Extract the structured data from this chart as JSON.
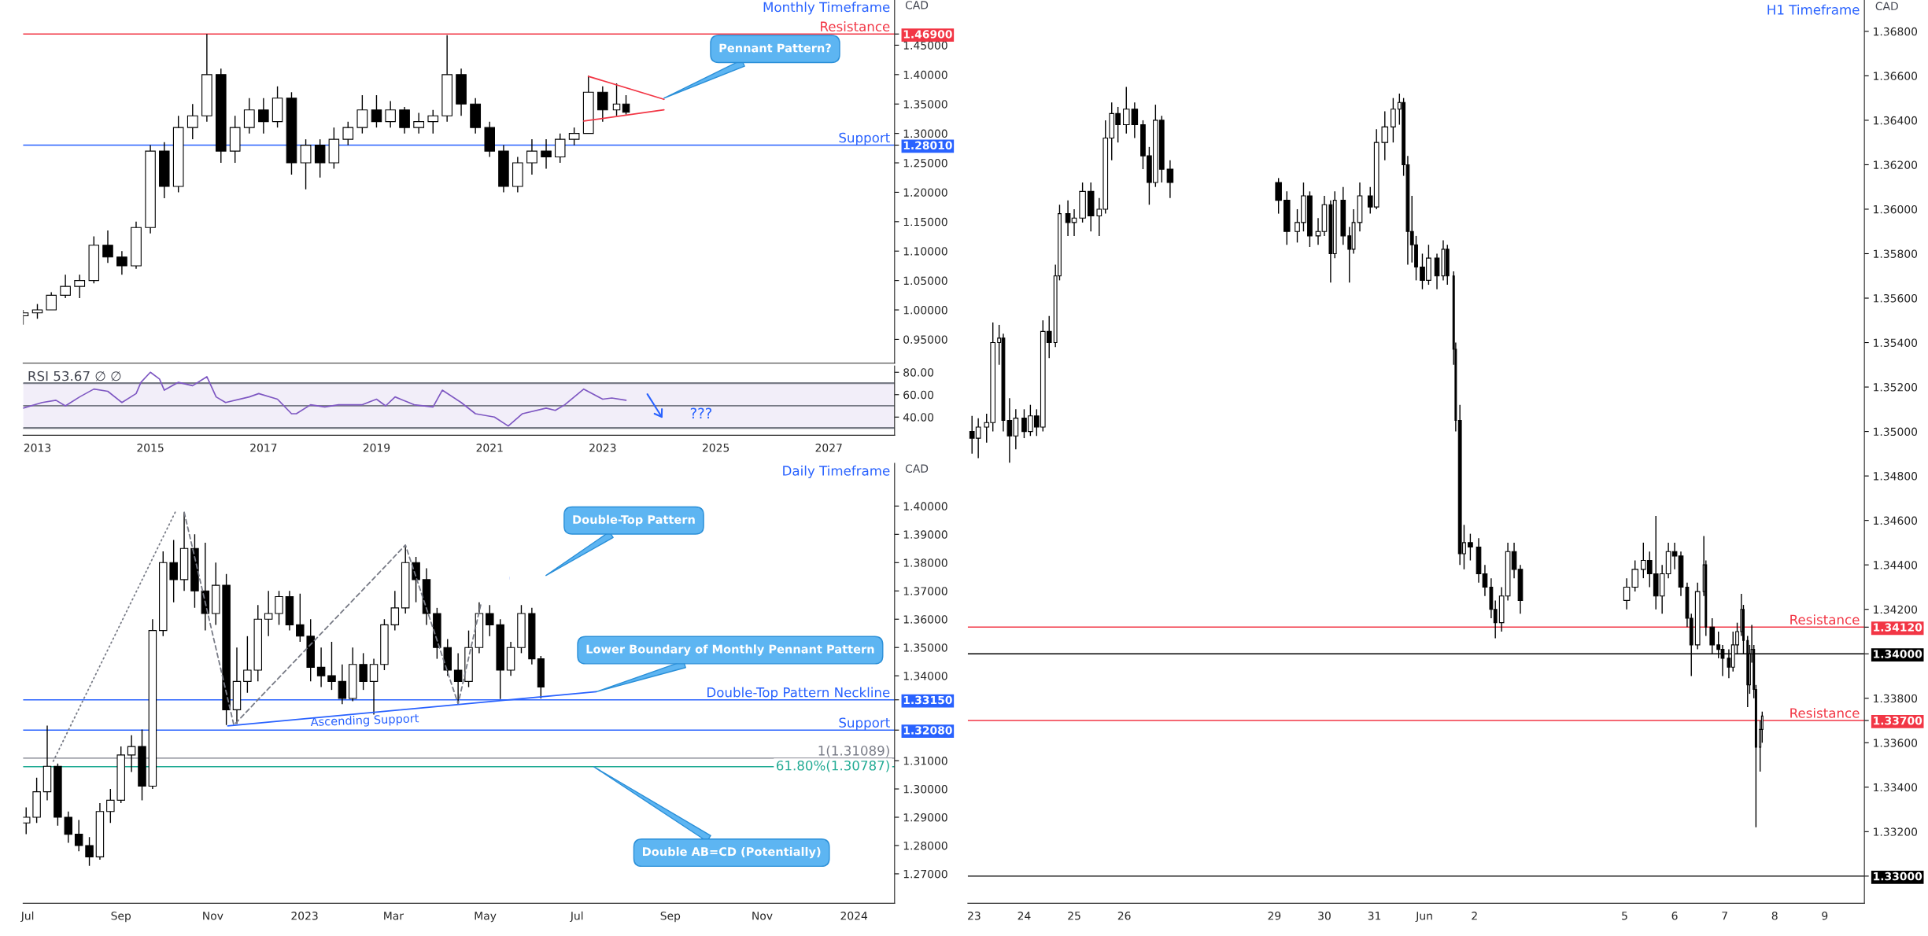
{
  "chart_data": [
    {
      "type": "candlestick",
      "title": "Monthly Timeframe",
      "ylabel": "CAD",
      "tick_labels": "y",
      "x": [
        "2012-10",
        "2013-01",
        "2013-04",
        "2013-07",
        "2013-10",
        "2014-01",
        "2014-04",
        "2014-07",
        "2014-10",
        "2015-01",
        "2015-04",
        "2015-07",
        "2015-10",
        "2016-01",
        "2016-04",
        "2016-07",
        "2016-10",
        "2017-01",
        "2017-04",
        "2017-07",
        "2017-10",
        "2018-01",
        "2018-04",
        "2018-07",
        "2018-10",
        "2019-01",
        "2019-04",
        "2019-07",
        "2019-10",
        "2020-01",
        "2020-04",
        "2020-07",
        "2020-10",
        "2021-01",
        "2021-04",
        "2021-07",
        "2021-10",
        "2022-01",
        "2022-04",
        "2022-07",
        "2022-10",
        "2023-01",
        "2023-04",
        "2023-06"
      ],
      "ohlc": [
        [
          0.99,
          1.0,
          0.975,
          0.995
        ],
        [
          0.995,
          1.01,
          0.985,
          1.0
        ],
        [
          1.0,
          1.03,
          1.0,
          1.025
        ],
        [
          1.025,
          1.06,
          1.02,
          1.04
        ],
        [
          1.04,
          1.06,
          1.02,
          1.05
        ],
        [
          1.05,
          1.125,
          1.045,
          1.11
        ],
        [
          1.11,
          1.135,
          1.08,
          1.09
        ],
        [
          1.09,
          1.1,
          1.06,
          1.075
        ],
        [
          1.075,
          1.15,
          1.07,
          1.14
        ],
        [
          1.14,
          1.28,
          1.13,
          1.27
        ],
        [
          1.27,
          1.285,
          1.19,
          1.21
        ],
        [
          1.21,
          1.33,
          1.2,
          1.31
        ],
        [
          1.31,
          1.35,
          1.29,
          1.33
        ],
        [
          1.33,
          1.469,
          1.32,
          1.4
        ],
        [
          1.4,
          1.41,
          1.25,
          1.27
        ],
        [
          1.27,
          1.33,
          1.25,
          1.31
        ],
        [
          1.31,
          1.36,
          1.3,
          1.34
        ],
        [
          1.34,
          1.36,
          1.3,
          1.32
        ],
        [
          1.32,
          1.38,
          1.31,
          1.36
        ],
        [
          1.36,
          1.37,
          1.23,
          1.25
        ],
        [
          1.25,
          1.29,
          1.205,
          1.28
        ],
        [
          1.28,
          1.29,
          1.225,
          1.25
        ],
        [
          1.25,
          1.31,
          1.24,
          1.29
        ],
        [
          1.29,
          1.32,
          1.28,
          1.31
        ],
        [
          1.31,
          1.365,
          1.3,
          1.34
        ],
        [
          1.34,
          1.365,
          1.31,
          1.32
        ],
        [
          1.32,
          1.355,
          1.31,
          1.34
        ],
        [
          1.34,
          1.345,
          1.3,
          1.31
        ],
        [
          1.31,
          1.335,
          1.3,
          1.32
        ],
        [
          1.32,
          1.34,
          1.3,
          1.33
        ],
        [
          1.33,
          1.467,
          1.32,
          1.4
        ],
        [
          1.4,
          1.41,
          1.33,
          1.35
        ],
        [
          1.35,
          1.36,
          1.3,
          1.31
        ],
        [
          1.31,
          1.32,
          1.26,
          1.27
        ],
        [
          1.27,
          1.28,
          1.2,
          1.21
        ],
        [
          1.21,
          1.26,
          1.2,
          1.25
        ],
        [
          1.25,
          1.29,
          1.23,
          1.27
        ],
        [
          1.27,
          1.29,
          1.24,
          1.26
        ],
        [
          1.26,
          1.3,
          1.25,
          1.29
        ],
        [
          1.29,
          1.31,
          1.28,
          1.3
        ],
        [
          1.3,
          1.398,
          1.3,
          1.37
        ],
        [
          1.37,
          1.38,
          1.32,
          1.34
        ],
        [
          1.34,
          1.385,
          1.33,
          1.35
        ],
        [
          1.35,
          1.365,
          1.332,
          1.336
        ]
      ],
      "series": [
        {
          "type": "line",
          "color": "#f23645",
          "x": [
            "2022-10",
            "2024-02"
          ],
          "values": [
            1.397,
            1.358
          ]
        },
        {
          "type": "line",
          "color": "#f23645",
          "x": [
            "2022-09",
            "2024-02"
          ],
          "values": [
            1.321,
            1.34
          ]
        }
      ],
      "ref_lines": [
        {
          "axis": "y",
          "value": 1.469,
          "label": "Resistance",
          "color": "#f23645"
        },
        {
          "axis": "y",
          "value": 1.2801,
          "label": "Support",
          "color": "#2962ff"
        }
      ],
      "annotations": [
        {
          "text": "Pennant Pattern?",
          "x": "2024-02",
          "y": 1.36
        }
      ],
      "xlim": [
        "2012-10",
        "2028-03"
      ],
      "ylim": [
        0.9095,
        1.5268
      ],
      "yticks": [
        {
          "value": 0.95,
          "label": "0.95000"
        },
        {
          "value": 1.0,
          "label": "1.00000"
        },
        {
          "value": 1.05,
          "label": "1.05000"
        },
        {
          "value": 1.1,
          "label": "1.10000"
        },
        {
          "value": 1.15,
          "label": "1.15000"
        },
        {
          "value": 1.2,
          "label": "1.20000"
        },
        {
          "value": 1.25,
          "label": "1.25000"
        },
        {
          "value": 1.2801,
          "label": "1.28010"
        },
        {
          "value": 1.3,
          "label": "1.30000"
        },
        {
          "value": 1.35,
          "label": "1.35000"
        },
        {
          "value": 1.4,
          "label": "1.40000"
        },
        {
          "value": 1.45,
          "label": "1.45000"
        },
        {
          "value": 1.469,
          "label": "1.46900"
        }
      ]
    },
    {
      "type": "line",
      "title": "RSI 53.67 ∅ ∅",
      "x": [
        "2012-10",
        "2013-02",
        "2013-05",
        "2013-07",
        "2013-10",
        "2014-01",
        "2014-04",
        "2014-07",
        "2014-10",
        "2014-11",
        "2015-01",
        "2015-03",
        "2015-04",
        "2015-07",
        "2015-10",
        "2016-01",
        "2016-03",
        "2016-05",
        "2016-10",
        "2016-12",
        "2017-04",
        "2017-07",
        "2017-08",
        "2017-11",
        "2018-02",
        "2018-05",
        "2018-10",
        "2019-01",
        "2019-03",
        "2019-05",
        "2019-09",
        "2020-01",
        "2020-03",
        "2020-07",
        "2020-10",
        "2021-02",
        "2021-05",
        "2021-08",
        "2022-01",
        "2022-03",
        "2022-05",
        "2022-09",
        "2023-01",
        "2023-03",
        "2023-06"
      ],
      "series": [
        {
          "color": "#7e57c2",
          "values": [
            48,
            53,
            55,
            50,
            58,
            65,
            63,
            53,
            61,
            71,
            80,
            74,
            64,
            71,
            68,
            76,
            58,
            53,
            58,
            61,
            56,
            43,
            43,
            51,
            49,
            51,
            51,
            56,
            50,
            58,
            51,
            49,
            64,
            53,
            43,
            40,
            32,
            43,
            48,
            46,
            51,
            65,
            56,
            57,
            55
          ]
        }
      ],
      "bands": [
        {
          "axis": "y",
          "from": 30,
          "to": 70,
          "color": "#7e57c2"
        }
      ],
      "ref_lines": [
        {
          "axis": "y",
          "value": 70,
          "color": "#787b86",
          "line_style": "dashed"
        },
        {
          "axis": "y",
          "value": 50,
          "color": "#787b86",
          "line_style": "dashed"
        },
        {
          "axis": "y",
          "value": 30,
          "color": "#787b86",
          "line_style": "dashed"
        }
      ],
      "annotations": [
        "???"
      ],
      "xlim": [
        "2012-10",
        "2028-03"
      ],
      "xticks": [
        {
          "value": "2013-01",
          "label": "2013"
        },
        {
          "value": "2015-01",
          "label": "2015"
        },
        {
          "value": "2017-01",
          "label": "2017"
        },
        {
          "value": "2019-01",
          "label": "2019"
        },
        {
          "value": "2021-01",
          "label": "2021"
        },
        {
          "value": "2023-01",
          "label": "2023"
        },
        {
          "value": "2025-01",
          "label": "2025"
        },
        {
          "value": "2027-01",
          "label": "2027"
        }
      ],
      "ylim": [
        23.8,
        85.6
      ],
      "yticks": [
        {
          "value": 40,
          "label": "40.00"
        },
        {
          "value": 60,
          "label": "60.00"
        },
        {
          "value": 80,
          "label": "80.00"
        }
      ]
    },
    {
      "type": "candlestick",
      "title": "Daily Timeframe",
      "ylabel": "CAD",
      "x": [
        "2022-06-30",
        "2022-07-07",
        "2022-07-14",
        "2022-07-21",
        "2022-07-28",
        "2022-08-04",
        "2022-08-11",
        "2022-08-18",
        "2022-08-25",
        "2022-09-01",
        "2022-09-08",
        "2022-09-15",
        "2022-09-22",
        "2022-09-29",
        "2022-10-06",
        "2022-10-13",
        "2022-10-20",
        "2022-10-27",
        "2022-11-03",
        "2022-11-10",
        "2022-11-17",
        "2022-11-24",
        "2022-12-01",
        "2022-12-08",
        "2022-12-15",
        "2022-12-22",
        "2022-12-29",
        "2023-01-05",
        "2023-01-12",
        "2023-01-19",
        "2023-01-26",
        "2023-02-02",
        "2023-02-09",
        "2023-02-16",
        "2023-02-23",
        "2023-03-02",
        "2023-03-09",
        "2023-03-16",
        "2023-03-23",
        "2023-03-30",
        "2023-04-06",
        "2023-04-13",
        "2023-04-20",
        "2023-04-27",
        "2023-05-04",
        "2023-05-11",
        "2023-05-18",
        "2023-05-25",
        "2023-06-01",
        "2023-06-07"
      ],
      "ohlc": [
        [
          1.288,
          1.2935,
          1.284,
          1.29
        ],
        [
          1.29,
          1.304,
          1.288,
          1.299
        ],
        [
          1.299,
          1.3224,
          1.296,
          1.308
        ],
        [
          1.308,
          1.309,
          1.287,
          1.29
        ],
        [
          1.29,
          1.292,
          1.281,
          1.284
        ],
        [
          1.284,
          1.289,
          1.278,
          1.28
        ],
        [
          1.28,
          1.283,
          1.2728,
          1.276
        ],
        [
          1.276,
          1.295,
          1.275,
          1.292
        ],
        [
          1.292,
          1.3,
          1.288,
          1.296
        ],
        [
          1.296,
          1.315,
          1.295,
          1.312
        ],
        [
          1.312,
          1.319,
          1.306,
          1.315
        ],
        [
          1.315,
          1.321,
          1.296,
          1.301
        ],
        [
          1.301,
          1.36,
          1.3,
          1.356
        ],
        [
          1.356,
          1.384,
          1.354,
          1.38
        ],
        [
          1.38,
          1.388,
          1.366,
          1.374
        ],
        [
          1.374,
          1.3978,
          1.37,
          1.385
        ],
        [
          1.385,
          1.39,
          1.364,
          1.37
        ],
        [
          1.37,
          1.387,
          1.356,
          1.362
        ],
        [
          1.362,
          1.38,
          1.358,
          1.372
        ],
        [
          1.372,
          1.376,
          1.3226,
          1.328
        ],
        [
          1.328,
          1.35,
          1.323,
          1.338
        ],
        [
          1.338,
          1.354,
          1.334,
          1.342
        ],
        [
          1.342,
          1.365,
          1.338,
          1.36
        ],
        [
          1.36,
          1.37,
          1.354,
          1.362
        ],
        [
          1.362,
          1.37,
          1.358,
          1.368
        ],
        [
          1.368,
          1.37,
          1.356,
          1.358
        ],
        [
          1.358,
          1.369,
          1.352,
          1.354
        ],
        [
          1.354,
          1.36,
          1.338,
          1.343
        ],
        [
          1.343,
          1.35,
          1.336,
          1.34
        ],
        [
          1.34,
          1.352,
          1.335,
          1.338
        ],
        [
          1.338,
          1.344,
          1.33,
          1.332
        ],
        [
          1.332,
          1.35,
          1.331,
          1.344
        ],
        [
          1.344,
          1.348,
          1.335,
          1.338
        ],
        [
          1.338,
          1.346,
          1.3263,
          1.344
        ],
        [
          1.344,
          1.36,
          1.342,
          1.358
        ],
        [
          1.358,
          1.37,
          1.356,
          1.364
        ],
        [
          1.364,
          1.3862,
          1.362,
          1.38
        ],
        [
          1.38,
          1.382,
          1.366,
          1.374
        ],
        [
          1.374,
          1.378,
          1.358,
          1.362
        ],
        [
          1.362,
          1.364,
          1.346,
          1.35
        ],
        [
          1.35,
          1.353,
          1.34,
          1.342
        ],
        [
          1.342,
          1.348,
          1.3301,
          1.338
        ],
        [
          1.338,
          1.356,
          1.336,
          1.35
        ],
        [
          1.35,
          1.366,
          1.348,
          1.362
        ],
        [
          1.362,
          1.365,
          1.354,
          1.358
        ],
        [
          1.358,
          1.36,
          1.3318,
          1.342
        ],
        [
          1.342,
          1.352,
          1.34,
          1.35
        ],
        [
          1.35,
          1.365,
          1.348,
          1.362
        ],
        [
          1.362,
          1.364,
          1.344,
          1.346
        ],
        [
          1.346,
          1.347,
          1.332,
          1.336
        ]
      ],
      "series": [
        {
          "type": "line",
          "color": "#787b86",
          "line_style": "dotted",
          "x": [
            "2022-07-18",
            "2022-10-07"
          ],
          "values": [
            1.3098,
            1.3978
          ]
        },
        {
          "type": "line",
          "color": "#787b86",
          "line_style": "dashed",
          "x": [
            "2022-10-13",
            "2022-11-15",
            "2023-03-09",
            "2023-04-13",
            "2023-04-28"
          ],
          "values": [
            1.3978,
            1.3226,
            1.3862,
            1.3301,
            1.365
          ]
        },
        {
          "type": "line",
          "color": "#2962ff",
          "x": [
            "2022-11-11",
            "2023-07-14"
          ],
          "values": [
            1.3223,
            1.3344
          ]
        }
      ],
      "ref_lines": [
        {
          "axis": "y",
          "value": 1.3315,
          "label": "Double-Top Pattern Neckline",
          "color": "#2962ff"
        },
        {
          "axis": "y",
          "value": 1.3208,
          "label": "Support",
          "color": "#2962ff"
        },
        {
          "axis": "y",
          "value": 1.31089,
          "label": "1(1.31089)",
          "color": "#787b86"
        },
        {
          "axis": "y",
          "value": 1.30787,
          "label": "61.80%(1.30787)",
          "color": "#22ab94"
        }
      ],
      "annotations": [
        "Double-Top Pattern",
        {
          "text": "Lower Boundary of Monthly Pennant Pattern",
          "x": "2023-07-14",
          "y": 1.3344
        },
        {
          "text": "Ascending Support",
          "x": "2023-02-10",
          "y": 1.3275
        },
        "Double AB=CD (Potentially)"
      ],
      "xlim": [
        "2022-06-28",
        "2024-01-28"
      ],
      "xticks": [
        {
          "value": "2022-07-01",
          "label": "Jul"
        },
        {
          "value": "2022-09-01",
          "label": "Sep"
        },
        {
          "value": "2022-11-01",
          "label": "Nov"
        },
        {
          "value": "2023-01-01",
          "label": "2023"
        },
        {
          "value": "2023-03-01",
          "label": "Mar"
        },
        {
          "value": "2023-05-01",
          "label": "May"
        },
        {
          "value": "2023-07-01",
          "label": "Jul"
        },
        {
          "value": "2023-09-01",
          "label": "Sep"
        },
        {
          "value": "2023-11-01",
          "label": "Nov"
        },
        {
          "value": "2024-01-01",
          "label": "2024"
        }
      ],
      "ylim": [
        1.2596,
        1.4151
      ],
      "yticks": [
        {
          "value": 1.27,
          "label": "1.27000"
        },
        {
          "value": 1.28,
          "label": "1.28000"
        },
        {
          "value": 1.29,
          "label": "1.29000"
        },
        {
          "value": 1.3,
          "label": "1.30000"
        },
        {
          "value": 1.31,
          "label": "1.31000"
        },
        {
          "value": 1.3208,
          "label": "1.32080"
        },
        {
          "value": 1.3315,
          "label": "1.33150"
        },
        {
          "value": 1.34,
          "label": "1.34000"
        },
        {
          "value": 1.35,
          "label": "1.35000"
        },
        {
          "value": 1.36,
          "label": "1.36000"
        },
        {
          "value": 1.37,
          "label": "1.37000"
        },
        {
          "value": 1.38,
          "label": "1.38000"
        },
        {
          "value": 1.39,
          "label": "1.39000"
        },
        {
          "value": 1.4,
          "label": "1.40000"
        }
      ]
    },
    {
      "type": "candlestick",
      "title": "H1 Timeframe",
      "ylabel": "CAD",
      "x": [
        "2023-05-22T23:00",
        "2023-05-23T02:00",
        "2023-05-23T06:00",
        "2023-05-23T09:00",
        "2023-05-23T12:00",
        "2023-05-23T14:00",
        "2023-05-23T17:00",
        "2023-05-23T20:00",
        "2023-05-24T00:00",
        "2023-05-24T03:00",
        "2023-05-24T06:00",
        "2023-05-24T09:00",
        "2023-05-24T12:00",
        "2023-05-24T15:00",
        "2023-05-24T17:00",
        "2023-05-24T21:00",
        "2023-05-25T00:00",
        "2023-05-25T04:00",
        "2023-05-25T08:00",
        "2023-05-25T12:00",
        "2023-05-25T15:00",
        "2023-05-25T18:00",
        "2023-05-25T21:00",
        "2023-05-26T01:00",
        "2023-05-26T05:00",
        "2023-05-26T09:00",
        "2023-05-26T12:00",
        "2023-05-26T15:00",
        "2023-05-26T18:00",
        "2023-05-26T22:00",
        "2023-05-29T02:00",
        "2023-05-29T06:00",
        "2023-05-29T11:00",
        "2023-05-29T14:00",
        "2023-05-29T17:00",
        "2023-05-29T21:00",
        "2023-05-30T00:00",
        "2023-05-30T03:00",
        "2023-05-30T05:00",
        "2023-05-30T09:00",
        "2023-05-30T12:00",
        "2023-05-30T14:00",
        "2023-05-30T17:00",
        "2023-05-30T22:00",
        "2023-05-31T01:00",
        "2023-05-31T05:00",
        "2023-05-31T09:00",
        "2023-05-31T12:00",
        "2023-05-31T14:00",
        "2023-05-31T16:00",
        "2023-05-31T18:00",
        "2023-05-31T20:00",
        "2023-05-31T23:00",
        "2023-06-01T02:00",
        "2023-06-01T06:00",
        "2023-06-01T09:00",
        "2023-06-01T11:00",
        "2023-06-01T14:00",
        "2023-06-01T15:00",
        "2023-06-01T17:00",
        "2023-06-01T19:00",
        "2023-06-01T22:00",
        "2023-06-02T02:00",
        "2023-06-02T05:00",
        "2023-06-02T08:00",
        "2023-06-02T10:00",
        "2023-06-02T13:00",
        "2023-06-02T16:00",
        "2023-06-02T19:00",
        "2023-06-02T22:00",
        "2023-06-05T01:00",
        "2023-06-05T05:00",
        "2023-06-05T09:00",
        "2023-06-05T12:00",
        "2023-06-05T15:00",
        "2023-06-05T18:00",
        "2023-06-05T21:00",
        "2023-06-06T00:00",
        "2023-06-06T03:00",
        "2023-06-06T06:00",
        "2023-06-06T08:00",
        "2023-06-06T11:00",
        "2023-06-06T14:00",
        "2023-06-06T15:00",
        "2023-06-06T18:00",
        "2023-06-06T21:00",
        "2023-06-06T23:00",
        "2023-06-07T02:00",
        "2023-06-07T04:00",
        "2023-06-07T06:00",
        "2023-06-07T08:00",
        "2023-06-07T09:00",
        "2023-06-07T11:00",
        "2023-06-07T12:00",
        "2023-06-07T13:00",
        "2023-06-07T14:00",
        "2023-06-07T15:00",
        "2023-06-07T17:00",
        "2023-06-07T18:00"
      ],
      "ohlc": [
        [
          1.35,
          1.3507,
          1.349,
          1.3497
        ],
        [
          1.3497,
          1.3506,
          1.3488,
          1.3502
        ],
        [
          1.3502,
          1.3508,
          1.3495,
          1.3504
        ],
        [
          1.3504,
          1.3549,
          1.35,
          1.354
        ],
        [
          1.354,
          1.3548,
          1.353,
          1.3542
        ],
        [
          1.3542,
          1.3544,
          1.35,
          1.3505
        ],
        [
          1.3505,
          1.3515,
          1.3486,
          1.3498
        ],
        [
          1.3498,
          1.351,
          1.3492,
          1.3506
        ],
        [
          1.3506,
          1.351,
          1.3497,
          1.35
        ],
        [
          1.35,
          1.3512,
          1.3498,
          1.3507
        ],
        [
          1.3507,
          1.351,
          1.3498,
          1.3502
        ],
        [
          1.3502,
          1.355,
          1.35,
          1.3545
        ],
        [
          1.3545,
          1.3552,
          1.3533,
          1.354
        ],
        [
          1.354,
          1.3575,
          1.3538,
          1.357
        ],
        [
          1.357,
          1.3602,
          1.3568,
          1.3598
        ],
        [
          1.3598,
          1.3604,
          1.3588,
          1.3594
        ],
        [
          1.3594,
          1.36,
          1.3588,
          1.3596
        ],
        [
          1.3596,
          1.3612,
          1.3594,
          1.3608
        ],
        [
          1.3608,
          1.3612,
          1.359,
          1.3597
        ],
        [
          1.3597,
          1.3605,
          1.3588,
          1.36
        ],
        [
          1.36,
          1.364,
          1.3598,
          1.3632
        ],
        [
          1.3632,
          1.3648,
          1.3622,
          1.3643
        ],
        [
          1.3643,
          1.3646,
          1.363,
          1.3638
        ],
        [
          1.3638,
          1.3655,
          1.3634,
          1.3645
        ],
        [
          1.3645,
          1.3648,
          1.3632,
          1.3638
        ],
        [
          1.3638,
          1.364,
          1.3618,
          1.3624
        ],
        [
          1.3624,
          1.3628,
          1.3602,
          1.3612
        ],
        [
          1.3612,
          1.3647,
          1.361,
          1.364
        ],
        [
          1.364,
          1.3642,
          1.3612,
          1.3618
        ],
        [
          1.3618,
          1.3622,
          1.3605,
          1.3612
        ],
        [
          1.3612,
          1.3614,
          1.3598,
          1.3604
        ],
        [
          1.3604,
          1.3608,
          1.3584,
          1.359
        ],
        [
          1.359,
          1.36,
          1.3585,
          1.3594
        ],
        [
          1.3594,
          1.3612,
          1.359,
          1.3606
        ],
        [
          1.3606,
          1.3608,
          1.3583,
          1.3588
        ],
        [
          1.3588,
          1.3596,
          1.3584,
          1.359
        ],
        [
          1.359,
          1.3606,
          1.3588,
          1.3602
        ],
        [
          1.3602,
          1.3604,
          1.3567,
          1.358
        ],
        [
          1.358,
          1.3608,
          1.3578,
          1.3604
        ],
        [
          1.3604,
          1.361,
          1.3584,
          1.3588
        ],
        [
          1.3588,
          1.3592,
          1.3567,
          1.3582
        ],
        [
          1.3582,
          1.36,
          1.358,
          1.3594
        ],
        [
          1.3594,
          1.3612,
          1.359,
          1.3606
        ],
        [
          1.3606,
          1.361,
          1.3598,
          1.3601
        ],
        [
          1.3601,
          1.3636,
          1.36,
          1.363
        ],
        [
          1.363,
          1.3644,
          1.3622,
          1.3637
        ],
        [
          1.3637,
          1.365,
          1.363,
          1.3645
        ],
        [
          1.3645,
          1.3652,
          1.3638,
          1.3648
        ],
        [
          1.3648,
          1.365,
          1.3615,
          1.362
        ],
        [
          1.362,
          1.3624,
          1.3575,
          1.359
        ],
        [
          1.359,
          1.3606,
          1.3576,
          1.3584
        ],
        [
          1.3584,
          1.3588,
          1.3568,
          1.3574
        ],
        [
          1.3574,
          1.358,
          1.3564,
          1.3568
        ],
        [
          1.3568,
          1.3584,
          1.3566,
          1.3578
        ],
        [
          1.3578,
          1.358,
          1.3564,
          1.357
        ],
        [
          1.357,
          1.3586,
          1.3568,
          1.3582
        ],
        [
          1.3582,
          1.3584,
          1.3566,
          1.357
        ],
        [
          1.357,
          1.3572,
          1.353,
          1.3537
        ],
        [
          1.3537,
          1.354,
          1.35,
          1.3505
        ],
        [
          1.3505,
          1.3512,
          1.344,
          1.3445
        ],
        [
          1.3445,
          1.3458,
          1.3438,
          1.345
        ],
        [
          1.345,
          1.3454,
          1.3442,
          1.3448
        ],
        [
          1.3448,
          1.3452,
          1.3432,
          1.3436
        ],
        [
          1.3436,
          1.344,
          1.3426,
          1.343
        ],
        [
          1.343,
          1.3434,
          1.3416,
          1.342
        ],
        [
          1.342,
          1.3424,
          1.3407,
          1.3414
        ],
        [
          1.3414,
          1.343,
          1.341,
          1.3426
        ],
        [
          1.3426,
          1.345,
          1.3424,
          1.3446
        ],
        [
          1.3446,
          1.345,
          1.3434,
          1.3438
        ],
        [
          1.3438,
          1.344,
          1.3418,
          1.3424
        ],
        [
          1.3424,
          1.3434,
          1.342,
          1.343
        ],
        [
          1.343,
          1.3442,
          1.3428,
          1.3438
        ],
        [
          1.3438,
          1.345,
          1.3434,
          1.3442
        ],
        [
          1.3442,
          1.3446,
          1.343,
          1.3436
        ],
        [
          1.3436,
          1.3462,
          1.342,
          1.3426
        ],
        [
          1.3426,
          1.344,
          1.3418,
          1.3436
        ],
        [
          1.3436,
          1.345,
          1.3434,
          1.3446
        ],
        [
          1.3446,
          1.345,
          1.3438,
          1.3444
        ],
        [
          1.3444,
          1.3446,
          1.3426,
          1.343
        ],
        [
          1.343,
          1.3432,
          1.3412,
          1.3416
        ],
        [
          1.3416,
          1.3418,
          1.339,
          1.3404
        ],
        [
          1.3404,
          1.3432,
          1.3402,
          1.3428
        ],
        [
          1.3428,
          1.3453,
          1.3426,
          1.344
        ],
        [
          1.344,
          1.3442,
          1.3408,
          1.3412
        ],
        [
          1.3412,
          1.3416,
          1.34,
          1.3404
        ],
        [
          1.3404,
          1.341,
          1.3398,
          1.3402
        ],
        [
          1.3402,
          1.3404,
          1.339,
          1.3398
        ],
        [
          1.3398,
          1.3402,
          1.3389,
          1.3394
        ],
        [
          1.3394,
          1.341,
          1.3392,
          1.3404
        ],
        [
          1.3404,
          1.3414,
          1.34,
          1.341
        ],
        [
          1.341,
          1.3427,
          1.3408,
          1.342
        ],
        [
          1.342,
          1.3422,
          1.34,
          1.3406
        ],
        [
          1.3406,
          1.3408,
          1.3376,
          1.3386
        ],
        [
          1.3386,
          1.3404,
          1.3382,
          1.34
        ],
        [
          1.34,
          1.3413,
          1.3396,
          1.3402
        ],
        [
          1.3402,
          1.3404,
          1.338,
          1.3384
        ],
        [
          1.3384,
          1.3386,
          1.3322,
          1.3358
        ],
        [
          1.3358,
          1.337,
          1.3347,
          1.3366
        ],
        [
          1.3366,
          1.3374,
          1.336,
          1.3372
        ]
      ],
      "ref_lines": [
        {
          "axis": "y",
          "value": 1.3412,
          "label": "Resistance",
          "color": "#f23645"
        },
        {
          "axis": "y",
          "value": 1.34,
          "color": "#000000"
        },
        {
          "axis": "y",
          "value": 1.337,
          "label": "Resistance",
          "color": "#f23645"
        },
        {
          "axis": "y",
          "value": 1.33,
          "color": "#000000"
        }
      ],
      "xlim": [
        "2023-05-22T21:00",
        "2023-06-09T19:00"
      ],
      "xticks": [
        {
          "value": "2023-05-23",
          "label": "23"
        },
        {
          "value": "2023-05-24",
          "label": "24"
        },
        {
          "value": "2023-05-25",
          "label": "25"
        },
        {
          "value": "2023-05-26",
          "label": "26"
        },
        {
          "value": "2023-05-29",
          "label": "29"
        },
        {
          "value": "2023-05-30",
          "label": "30"
        },
        {
          "value": "2023-05-31",
          "label": "31"
        },
        {
          "value": "2023-06-01",
          "label": "Jun"
        },
        {
          "value": "2023-06-02",
          "label": "2"
        },
        {
          "value": "2023-06-05",
          "label": "5"
        },
        {
          "value": "2023-06-06",
          "label": "6"
        },
        {
          "value": "2023-06-07",
          "label": "7"
        },
        {
          "value": "2023-06-08",
          "label": "8"
        },
        {
          "value": "2023-06-09",
          "label": "9"
        }
      ],
      "ylim": [
        1.32878,
        1.36941
      ],
      "yticks": [
        {
          "value": 1.33,
          "label": "1.33000"
        },
        {
          "value": 1.332,
          "label": "1.33200"
        },
        {
          "value": 1.334,
          "label": "1.33400"
        },
        {
          "value": 1.336,
          "label": "1.33600"
        },
        {
          "value": 1.337,
          "label": "1.33700"
        },
        {
          "value": 1.338,
          "label": "1.33800"
        },
        {
          "value": 1.34,
          "label": "1.34000"
        },
        {
          "value": 1.3412,
          "label": "1.34120"
        },
        {
          "value": 1.342,
          "label": "1.34200"
        },
        {
          "value": 1.344,
          "label": "1.34400"
        },
        {
          "value": 1.346,
          "label": "1.34600"
        },
        {
          "value": 1.348,
          "label": "1.34800"
        },
        {
          "value": 1.35,
          "label": "1.35000"
        },
        {
          "value": 1.352,
          "label": "1.35200"
        },
        {
          "value": 1.354,
          "label": "1.35400"
        },
        {
          "value": 1.356,
          "label": "1.35600"
        },
        {
          "value": 1.358,
          "label": "1.35800"
        },
        {
          "value": 1.36,
          "label": "1.36000"
        },
        {
          "value": 1.362,
          "label": "1.36200"
        },
        {
          "value": 1.364,
          "label": "1.36400"
        },
        {
          "value": 1.366,
          "label": "1.36600"
        },
        {
          "value": 1.368,
          "label": "1.36800"
        }
      ]
    }
  ]
}
